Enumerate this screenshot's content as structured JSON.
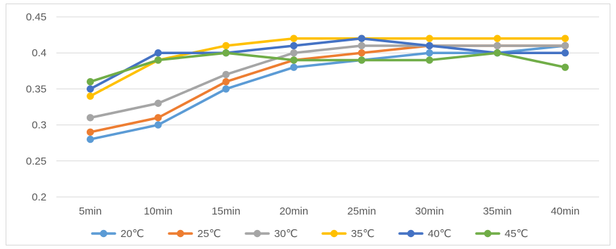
{
  "chart_data": {
    "type": "line",
    "title": "",
    "xlabel": "",
    "ylabel": "",
    "categories": [
      "5min",
      "10min",
      "15min",
      "20min",
      "25min",
      "30min",
      "35min",
      "40min"
    ],
    "ylim": [
      0.2,
      0.45
    ],
    "yticks": [
      "0.45",
      "0.4",
      "0.35",
      "0.3",
      "0.25",
      "0.2"
    ],
    "grid": true,
    "legend_position": "bottom",
    "series": [
      {
        "name": "20℃",
        "color": "#5b9bd5",
        "values": [
          0.28,
          0.3,
          0.35,
          0.38,
          0.39,
          0.4,
          0.4,
          0.41
        ]
      },
      {
        "name": "25℃",
        "color": "#ed7d31",
        "values": [
          0.29,
          0.31,
          0.36,
          0.39,
          0.4,
          0.41,
          0.41,
          0.41
        ]
      },
      {
        "name": "30℃",
        "color": "#a5a5a5",
        "values": [
          0.31,
          0.33,
          0.37,
          0.4,
          0.41,
          0.41,
          0.41,
          0.41
        ]
      },
      {
        "name": "35℃",
        "color": "#ffc000",
        "values": [
          0.34,
          0.39,
          0.41,
          0.42,
          0.42,
          0.42,
          0.42,
          0.42
        ]
      },
      {
        "name": "40℃",
        "color": "#4472c4",
        "values": [
          0.35,
          0.4,
          0.4,
          0.41,
          0.42,
          0.41,
          0.4,
          0.4
        ]
      },
      {
        "name": "45℃",
        "color": "#70ad47",
        "values": [
          0.36,
          0.39,
          0.4,
          0.39,
          0.39,
          0.39,
          0.4,
          0.38
        ]
      }
    ]
  }
}
